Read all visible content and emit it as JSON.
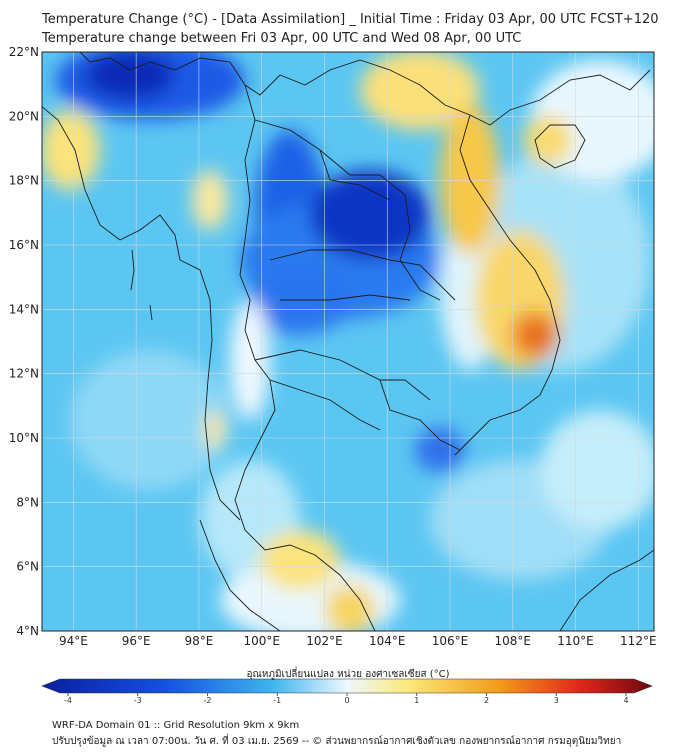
{
  "header": {
    "title_line1": "Temperature Change (°C) - [Data Assimilation] _ Initial Time : Friday 03 Apr, 00 UTC FCST+120",
    "title_line2": "Temperature change between Fri 03 Apr, 00 UTC and Wed 08 Apr, 00 UTC"
  },
  "map": {
    "lat_labels": [
      "22°N",
      "20°N",
      "18°N",
      "16°N",
      "14°N",
      "12°N",
      "10°N",
      "8°N",
      "6°N",
      "4°N"
    ],
    "lon_labels": [
      "94°E",
      "96°E",
      "98°E",
      "100°E",
      "102°E",
      "104°E",
      "106°E",
      "108°E",
      "110°E",
      "112°E"
    ],
    "lat_range": [
      4,
      22
    ],
    "lon_range": [
      93,
      112.5
    ],
    "grid": true
  },
  "colorbar": {
    "title": "อุณหภูมิเปลี่ยนแปลง หน่วย องศาเซลเซียส (°C)",
    "ticks": [
      "-4",
      "-3",
      "-2",
      "-1",
      "0",
      "1",
      "2",
      "3",
      "4"
    ],
    "colors": {
      "cold_extreme": "#0a1f9e",
      "cold": "#1060e0",
      "cool": "#3fb6ee",
      "neutral": "#eef8ff",
      "warm": "#fbe97a",
      "hot": "#f39a1c",
      "very_hot": "#e0281a",
      "hot_extreme": "#6e0610"
    }
  },
  "footer": {
    "line1": "WRF-DA Domain 01 :: Grid Resolution 9km x 9km",
    "line2": "ปรับปรุงข้อมูล ณ เวลา 07:00น. วัน ศ. ที่ 03 เม.ย. 2569 -- © ส่วนพยากรณ์อากาศเชิงตัวเลข กองพยากรณ์อากาศ กรมอุตุนิยมวิทยา"
  }
}
